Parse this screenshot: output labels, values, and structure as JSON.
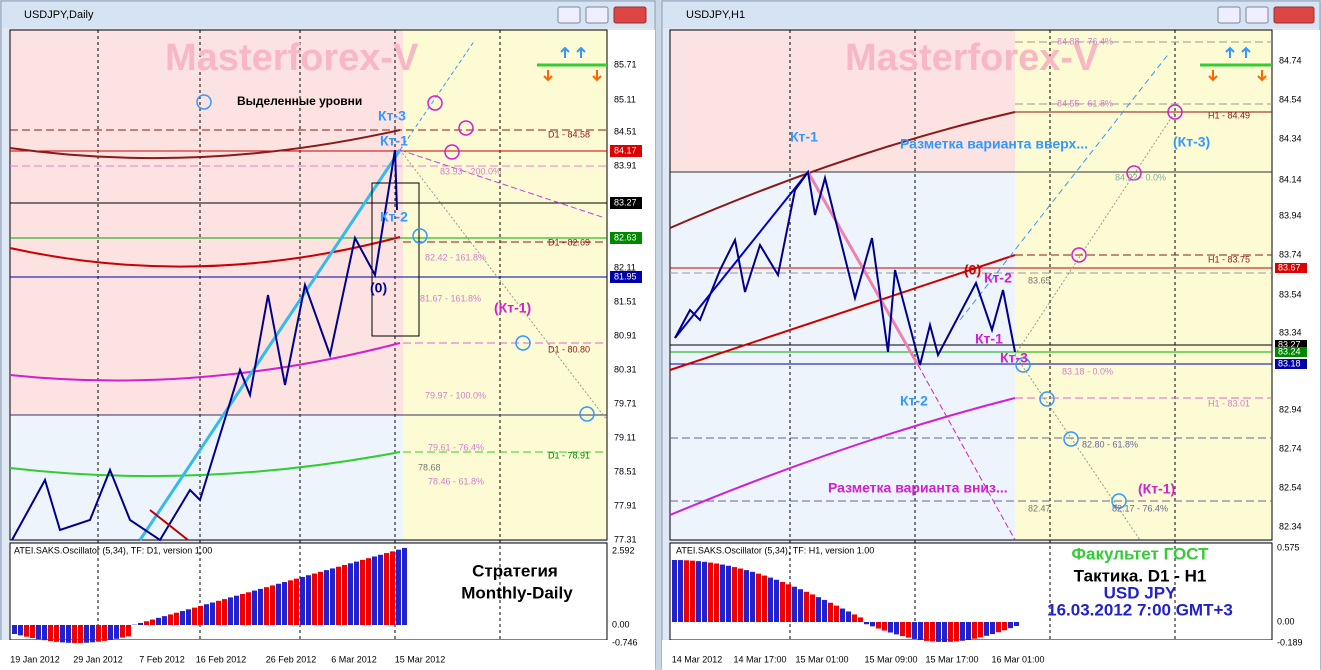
{
  "left": {
    "title": "USDJPY,Daily",
    "watermark": "Masterforex-V",
    "legend": "Выделенные уровни",
    "price_axis": [
      "85.71",
      "85.11",
      "84.51",
      "83.91",
      "82.11",
      "81.51",
      "80.91",
      "80.31",
      "79.71",
      "79.11",
      "78.51",
      "77.91",
      "77.31"
    ],
    "price_boxes": [
      "84.17",
      "83.27",
      "82.63",
      "81.95"
    ],
    "levels": [
      "D1 - 84.58",
      "83.93 - 200.0%",
      "D1 - 82.69",
      "82.42 - 161.8%",
      "81.67 - 161.8%",
      "D1 - 80.80",
      "79.97 - 100.0%",
      "79.61 - 76.4%",
      "D1 - 78.91",
      "78.68",
      "78.46 - 61.8%"
    ],
    "annotations": [
      "Кт-3",
      "Кт-1",
      "Кт-2",
      "(0)",
      "(Кт-1)"
    ],
    "strategy": [
      "Стратегия",
      "Monthly-Daily"
    ],
    "oscillator": {
      "title": "ATEI.SAKS.Oscillator (5,34), TF: D1, version 1.00",
      "axis": [
        "2.592",
        "0.00",
        "-0.746"
      ]
    },
    "dates": [
      "19 Jan 2012",
      "29 Jan 2012",
      "7 Feb 2012",
      "16 Feb 2012",
      "26 Feb 2012",
      "6 Mar 2012",
      "15 Mar 2012"
    ]
  },
  "right": {
    "title": "USDJPY,H1",
    "watermark": "Masterforex-V",
    "price_axis": [
      "84.74",
      "84.54",
      "84.34",
      "84.14",
      "83.94",
      "83.74",
      "83.54",
      "83.34",
      "82.94",
      "82.74",
      "82.54",
      "82.34"
    ],
    "price_boxes": [
      "83.67",
      "83.27",
      "83.24",
      "83.18"
    ],
    "levels": [
      "84.88 - 76.4%",
      "84.55 - 61.8%",
      "H1 - 84.49",
      "84.22 - 0.0%",
      "H1 - 83.75",
      "83.65",
      "83.18 - 0.0%",
      "H1 - 83.01",
      "82.80 - 61.8%",
      "82.47",
      "82.17 - 76.4%"
    ],
    "annotations": [
      "Кт-1",
      "Разметка варианта вверх...",
      "(Кт-3)",
      "(0)",
      "Кт-2",
      "Кт-1",
      "Кт-3",
      "Кт-2",
      "Разметка варианта вниз...",
      "(Кт-1)"
    ],
    "caption": [
      "Факультет ГОСТ",
      "Тактика. D1 - H1",
      "USD JPY",
      "16.03.2012 7:00 GMT+3"
    ],
    "oscillator": {
      "title": "ATEI.SAKS.Oscillator (5,34), TF: H1, version 1.00",
      "axis": [
        "0.575",
        "0.00",
        "-0.189"
      ]
    },
    "dates": [
      "14 Mar 2012",
      "14 Mar 17:00",
      "15 Mar 01:00",
      "15 Mar 09:00",
      "15 Mar 17:00",
      "16 Mar 01:00"
    ]
  }
}
